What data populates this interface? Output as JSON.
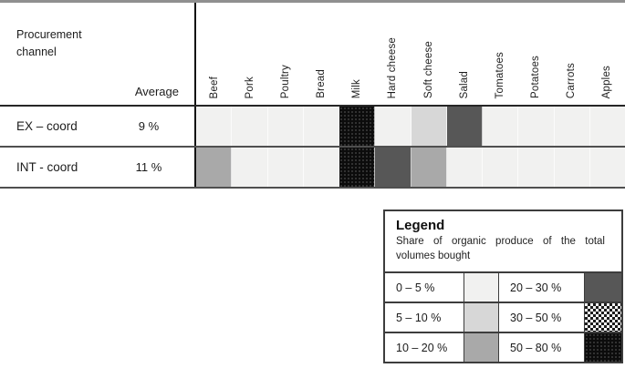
{
  "chart_data": {
    "type": "heatmap",
    "corner_label": "Procurement channel",
    "average_label": "Average",
    "columns": [
      "Beef",
      "Pork",
      "Poultry",
      "Bread",
      "Milk",
      "Hard cheese",
      "Soft cheese",
      "Salad",
      "Tomatoes",
      "Potatoes",
      "Carrots",
      "Apples"
    ],
    "rows": [
      {
        "label": "EX – coord",
        "average": "9 %",
        "cells": [
          "0-5",
          "0-5",
          "0-5",
          "0-5",
          "50-80",
          "0-5",
          "5-10",
          "20-30",
          "0-5",
          "0-5",
          "0-5",
          "0-5"
        ]
      },
      {
        "label": "INT - coord",
        "average": "11 %",
        "cells": [
          "10-20",
          "0-5",
          "0-5",
          "0-5",
          "50-80",
          "20-30",
          "10-20",
          "0-5",
          "0-5",
          "0-5",
          "0-5",
          "0-5"
        ]
      }
    ],
    "legend": {
      "title": "Legend",
      "description": "Share of organic produce of the total volumes bought",
      "entries": [
        {
          "label": "0 – 5 %",
          "bucket": "0-5"
        },
        {
          "label": "5 – 10 %",
          "bucket": "5-10"
        },
        {
          "label": "10 – 20 %",
          "bucket": "10-20"
        },
        {
          "label": "20 – 30 %",
          "bucket": "20-30"
        },
        {
          "label": "30 – 50 %",
          "bucket": "30-50"
        },
        {
          "label": "50 – 80 %",
          "bucket": "50-80"
        }
      ]
    }
  },
  "palette": {
    "bucket_0_5": "#f1f1f0",
    "bucket_5_10": "#d7d7d7",
    "bucket_10_20": "#a9a9a9",
    "bucket_20_30": "#575757",
    "bucket_30_50_checker_dark": "#1c1c1c",
    "bucket_50_80": "#0c0c0c"
  }
}
